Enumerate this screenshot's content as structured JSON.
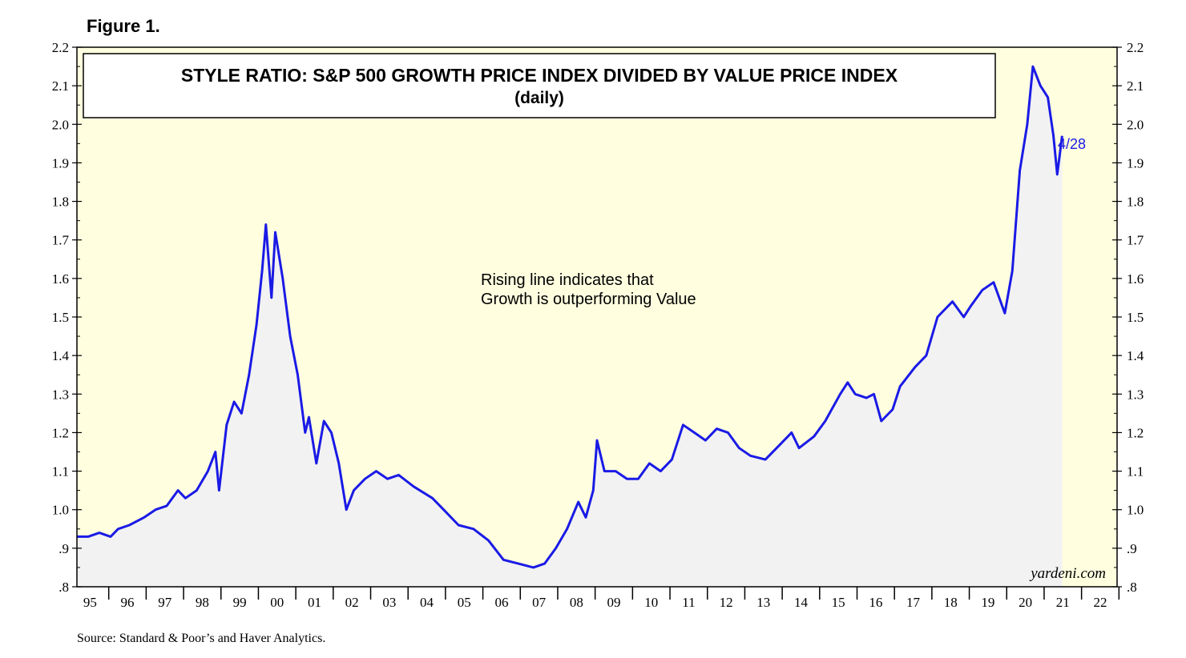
{
  "figure_label": "Figure 1.",
  "source": "Source: Standard & Poor’s and Haver Analytics.",
  "credit": "yardeni.com",
  "colors": {
    "plot_bg": "#ffffe0",
    "line": "#1a1ae6",
    "area": "#f2f2f2"
  },
  "chart_data": {
    "type": "area",
    "title": "STYLE RATIO: S&P 500 GROWTH PRICE INDEX DIVIDED BY VALUE PRICE INDEX",
    "subtitle": "(daily)",
    "xlabel": "",
    "ylabel": "",
    "annotation": [
      "Rising line indicates that",
      "Growth is outperforming Value"
    ],
    "end_label": "4/28",
    "x_range": [
      1995.0,
      2022.8
    ],
    "ylim": [
      0.8,
      2.2
    ],
    "y_ticks": [
      {
        "v": 0.8,
        "label": ".8"
      },
      {
        "v": 0.9,
        "label": ".9"
      },
      {
        "v": 1.0,
        "label": "1.0"
      },
      {
        "v": 1.1,
        "label": "1.1"
      },
      {
        "v": 1.2,
        "label": "1.2"
      },
      {
        "v": 1.3,
        "label": "1.3"
      },
      {
        "v": 1.4,
        "label": "1.4"
      },
      {
        "v": 1.5,
        "label": "1.5"
      },
      {
        "v": 1.6,
        "label": "1.6"
      },
      {
        "v": 1.7,
        "label": "1.7"
      },
      {
        "v": 1.8,
        "label": "1.8"
      },
      {
        "v": 1.9,
        "label": "1.9"
      },
      {
        "v": 2.0,
        "label": "2.0"
      },
      {
        "v": 2.1,
        "label": "2.1"
      },
      {
        "v": 2.2,
        "label": "2.2"
      }
    ],
    "x_ticks": [
      "95",
      "96",
      "97",
      "98",
      "99",
      "00",
      "01",
      "02",
      "03",
      "04",
      "05",
      "06",
      "07",
      "08",
      "09",
      "10",
      "11",
      "12",
      "13",
      "14",
      "15",
      "16",
      "17",
      "18",
      "19",
      "20",
      "21",
      "22"
    ],
    "grid": false,
    "series": [
      {
        "values": [
          [
            1995.0,
            0.93
          ],
          [
            1995.3,
            0.93
          ],
          [
            1995.6,
            0.94
          ],
          [
            1995.9,
            0.93
          ],
          [
            1996.1,
            0.95
          ],
          [
            1996.4,
            0.96
          ],
          [
            1996.8,
            0.98
          ],
          [
            1997.1,
            1.0
          ],
          [
            1997.4,
            1.01
          ],
          [
            1997.7,
            1.05
          ],
          [
            1997.9,
            1.03
          ],
          [
            1998.2,
            1.05
          ],
          [
            1998.5,
            1.1
          ],
          [
            1998.7,
            1.15
          ],
          [
            1998.8,
            1.05
          ],
          [
            1999.0,
            1.22
          ],
          [
            1999.2,
            1.28
          ],
          [
            1999.4,
            1.25
          ],
          [
            1999.6,
            1.35
          ],
          [
            1999.8,
            1.48
          ],
          [
            1999.95,
            1.62
          ],
          [
            2000.05,
            1.74
          ],
          [
            2000.2,
            1.55
          ],
          [
            2000.3,
            1.72
          ],
          [
            2000.5,
            1.6
          ],
          [
            2000.7,
            1.45
          ],
          [
            2000.9,
            1.35
          ],
          [
            2001.1,
            1.2
          ],
          [
            2001.2,
            1.24
          ],
          [
            2001.4,
            1.12
          ],
          [
            2001.6,
            1.23
          ],
          [
            2001.8,
            1.2
          ],
          [
            2002.0,
            1.12
          ],
          [
            2002.2,
            1.0
          ],
          [
            2002.4,
            1.05
          ],
          [
            2002.7,
            1.08
          ],
          [
            2003.0,
            1.1
          ],
          [
            2003.3,
            1.08
          ],
          [
            2003.6,
            1.09
          ],
          [
            2004.0,
            1.06
          ],
          [
            2004.5,
            1.03
          ],
          [
            2004.8,
            1.0
          ],
          [
            2005.2,
            0.96
          ],
          [
            2005.6,
            0.95
          ],
          [
            2006.0,
            0.92
          ],
          [
            2006.4,
            0.87
          ],
          [
            2006.8,
            0.86
          ],
          [
            2007.2,
            0.85
          ],
          [
            2007.5,
            0.86
          ],
          [
            2007.8,
            0.9
          ],
          [
            2008.1,
            0.95
          ],
          [
            2008.4,
            1.02
          ],
          [
            2008.6,
            0.98
          ],
          [
            2008.8,
            1.05
          ],
          [
            2008.9,
            1.18
          ],
          [
            2009.1,
            1.1
          ],
          [
            2009.4,
            1.1
          ],
          [
            2009.7,
            1.08
          ],
          [
            2010.0,
            1.08
          ],
          [
            2010.3,
            1.12
          ],
          [
            2010.6,
            1.1
          ],
          [
            2010.9,
            1.13
          ],
          [
            2011.2,
            1.22
          ],
          [
            2011.5,
            1.2
          ],
          [
            2011.8,
            1.18
          ],
          [
            2012.1,
            1.21
          ],
          [
            2012.4,
            1.2
          ],
          [
            2012.7,
            1.16
          ],
          [
            2013.0,
            1.14
          ],
          [
            2013.4,
            1.13
          ],
          [
            2013.8,
            1.17
          ],
          [
            2014.1,
            1.2
          ],
          [
            2014.3,
            1.16
          ],
          [
            2014.7,
            1.19
          ],
          [
            2015.0,
            1.23
          ],
          [
            2015.4,
            1.3
          ],
          [
            2015.6,
            1.33
          ],
          [
            2015.8,
            1.3
          ],
          [
            2016.1,
            1.29
          ],
          [
            2016.3,
            1.3
          ],
          [
            2016.5,
            1.23
          ],
          [
            2016.8,
            1.26
          ],
          [
            2017.0,
            1.32
          ],
          [
            2017.4,
            1.37
          ],
          [
            2017.7,
            1.4
          ],
          [
            2018.0,
            1.5
          ],
          [
            2018.4,
            1.54
          ],
          [
            2018.7,
            1.5
          ],
          [
            2018.9,
            1.53
          ],
          [
            2019.2,
            1.57
          ],
          [
            2019.5,
            1.59
          ],
          [
            2019.8,
            1.51
          ],
          [
            2020.0,
            1.62
          ],
          [
            2020.2,
            1.88
          ],
          [
            2020.4,
            2.0
          ],
          [
            2020.55,
            2.15
          ],
          [
            2020.75,
            2.1
          ],
          [
            2020.95,
            2.07
          ],
          [
            2021.1,
            1.97
          ],
          [
            2021.2,
            1.87
          ],
          [
            2021.33,
            1.97
          ]
        ]
      }
    ]
  }
}
